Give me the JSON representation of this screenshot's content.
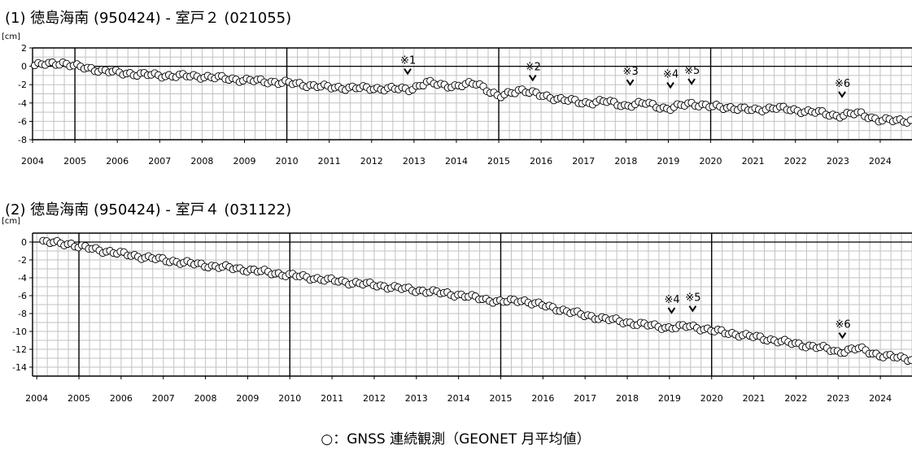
{
  "legend": {
    "text": "○：GNSS 連続観測（GEONET 月平均値）"
  },
  "chart_data": [
    {
      "type": "scatter",
      "title": "(1) 徳島海南 (950424) - 室戸２ (021055)",
      "unit_label": "[cm]",
      "xlabel": "",
      "ylabel": "",
      "xlim": [
        2004.0,
        2024.75
      ],
      "ylim": [
        -8,
        2
      ],
      "yticks": [
        2,
        0,
        -2,
        -4,
        -6,
        -8
      ],
      "ytick_labels": [
        "2",
        "0",
        "-2",
        "-4",
        "-6",
        "-8"
      ],
      "xticks": [
        2004,
        2005,
        2006,
        2007,
        2008,
        2009,
        2010,
        2011,
        2012,
        2013,
        2014,
        2015,
        2016,
        2017,
        2018,
        2019,
        2020,
        2021,
        2022,
        2023,
        2024
      ],
      "xtick_labels": [
        "2004",
        "2005",
        "2006",
        "2007",
        "2008",
        "2009",
        "2010",
        "2011",
        "2012",
        "2013",
        "2014",
        "2015",
        "2016",
        "2017",
        "2018",
        "2019",
        "2020",
        "2021",
        "2022",
        "2023",
        "2024"
      ],
      "grid": true,
      "annotations": [
        {
          "label": "※1",
          "x": 2012.85,
          "y": -0.8
        },
        {
          "label": "※2",
          "x": 2015.8,
          "y": -1.5
        },
        {
          "label": "※3",
          "x": 2018.1,
          "y": -2.0
        },
        {
          "label": "※4",
          "x": 2019.05,
          "y": -2.3
        },
        {
          "label": "※5",
          "x": 2019.55,
          "y": -1.9
        },
        {
          "label": "※6",
          "x": 2023.1,
          "y": -3.3
        }
      ],
      "series": [
        {
          "marker": "open-circle",
          "anchors": [
            [
              2004.05,
              0.1
            ],
            [
              2004.7,
              0.4
            ],
            [
              2005.0,
              0.0
            ],
            [
              2006.0,
              -0.7
            ],
            [
              2007.0,
              -1.0
            ],
            [
              2008.0,
              -1.1
            ],
            [
              2009.0,
              -1.5
            ],
            [
              2010.0,
              -1.8
            ],
            [
              2011.0,
              -2.3
            ],
            [
              2012.0,
              -2.4
            ],
            [
              2012.9,
              -2.5
            ],
            [
              2013.3,
              -1.8
            ],
            [
              2014.0,
              -2.2
            ],
            [
              2014.5,
              -1.8
            ],
            [
              2015.0,
              -3.4
            ],
            [
              2015.5,
              -2.5
            ],
            [
              2016.0,
              -3.2
            ],
            [
              2016.5,
              -3.6
            ],
            [
              2017.0,
              -4.0
            ],
            [
              2017.5,
              -3.8
            ],
            [
              2018.0,
              -4.3
            ],
            [
              2018.5,
              -4.0
            ],
            [
              2019.0,
              -4.7
            ],
            [
              2019.5,
              -4.0
            ],
            [
              2020.0,
              -4.4
            ],
            [
              2020.5,
              -4.5
            ],
            [
              2021.0,
              -4.8
            ],
            [
              2021.5,
              -4.5
            ],
            [
              2022.0,
              -4.8
            ],
            [
              2022.5,
              -5.0
            ],
            [
              2023.0,
              -5.4
            ],
            [
              2023.5,
              -5.1
            ],
            [
              2024.0,
              -5.9
            ],
            [
              2024.75,
              -5.9
            ]
          ]
        }
      ]
    },
    {
      "type": "scatter",
      "title": "(2) 徳島海南 (950424) - 室戸４ (031122)",
      "unit_label": "[cm]",
      "xlabel": "",
      "ylabel": "",
      "xlim": [
        2003.9,
        2024.75
      ],
      "ylim": [
        -15,
        1
      ],
      "yticks": [
        0,
        -2,
        -4,
        -6,
        -8,
        -10,
        -12,
        -14
      ],
      "ytick_labels": [
        "0",
        "-2",
        "-4",
        "-6",
        "-8",
        "-10",
        "-12",
        "-14"
      ],
      "xticks": [
        2004,
        2005,
        2006,
        2007,
        2008,
        2009,
        2010,
        2011,
        2012,
        2013,
        2014,
        2015,
        2016,
        2017,
        2018,
        2019,
        2020,
        2021,
        2022,
        2023,
        2024
      ],
      "xtick_labels": [
        "2004",
        "2005",
        "2006",
        "2007",
        "2008",
        "2009",
        "2010",
        "2011",
        "2012",
        "2013",
        "2014",
        "2015",
        "2016",
        "2017",
        "2018",
        "2019",
        "2020",
        "2021",
        "2022",
        "2023",
        "2024"
      ],
      "grid": true,
      "annotations": [
        {
          "label": "※4",
          "x": 2019.05,
          "y": -7.9
        },
        {
          "label": "※5",
          "x": 2019.55,
          "y": -7.7
        },
        {
          "label": "※6",
          "x": 2023.1,
          "y": -10.7
        }
      ],
      "series": [
        {
          "marker": "open-circle",
          "anchors": [
            [
              2004.15,
              0.0
            ],
            [
              2004.8,
              -0.2
            ],
            [
              2005.0,
              -0.5
            ],
            [
              2006.0,
              -1.3
            ],
            [
              2007.0,
              -2.0
            ],
            [
              2008.0,
              -2.6
            ],
            [
              2009.0,
              -3.1
            ],
            [
              2010.0,
              -3.7
            ],
            [
              2011.0,
              -4.3
            ],
            [
              2012.0,
              -4.8
            ],
            [
              2013.0,
              -5.4
            ],
            [
              2014.0,
              -5.9
            ],
            [
              2015.0,
              -6.7
            ],
            [
              2015.5,
              -6.5
            ],
            [
              2016.0,
              -7.1
            ],
            [
              2017.0,
              -8.2
            ],
            [
              2018.0,
              -9.0
            ],
            [
              2019.0,
              -9.6
            ],
            [
              2019.5,
              -9.4
            ],
            [
              2020.0,
              -9.9
            ],
            [
              2021.0,
              -10.6
            ],
            [
              2022.0,
              -11.4
            ],
            [
              2022.7,
              -11.9
            ],
            [
              2023.0,
              -12.3
            ],
            [
              2023.5,
              -11.9
            ],
            [
              2024.0,
              -12.7
            ],
            [
              2024.75,
              -13.1
            ]
          ]
        }
      ]
    }
  ]
}
